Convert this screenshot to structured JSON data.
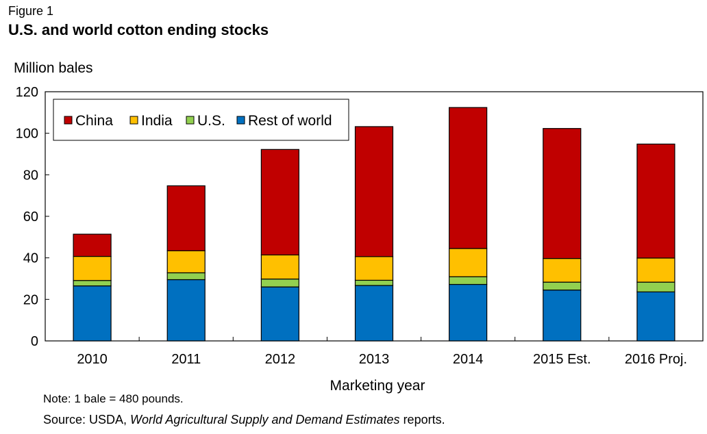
{
  "figure_label": "Figure 1",
  "title": "U.S. and world cotton ending stocks",
  "ylabel": "Million bales",
  "note": "Note: 1 bale = 480 pounds.",
  "source": {
    "prefix": "Source: USDA, ",
    "italic": "World Agricultural Supply and Demand Estimates",
    "suffix": " reports."
  },
  "chart_data": {
    "type": "bar",
    "stacked": true,
    "title": "U.S. and world cotton ending stocks",
    "xlabel": "Marketing year",
    "ylabel": "Million bales",
    "ylim": [
      0,
      120
    ],
    "yticks": [
      0,
      20,
      40,
      60,
      80,
      100,
      120
    ],
    "grid": false,
    "legend_position": "top-left",
    "categories": [
      "2010",
      "2011",
      "2012",
      "2013",
      "2014",
      "2015 Est.",
      "2016 Proj."
    ],
    "series": [
      {
        "name": "Rest of world",
        "color": "#0070c0",
        "values": [
          26.5,
          29.5,
          26.0,
          26.7,
          27.2,
          24.5,
          23.6
        ]
      },
      {
        "name": "U.S.",
        "color": "#92d050",
        "values": [
          2.6,
          3.3,
          3.8,
          2.5,
          3.7,
          3.8,
          4.7
        ]
      },
      {
        "name": "India",
        "color": "#ffc000",
        "values": [
          11.6,
          10.6,
          11.6,
          11.4,
          13.6,
          11.4,
          11.6
        ]
      },
      {
        "name": "China",
        "color": "#c00000",
        "values": [
          10.7,
          31.3,
          50.8,
          62.6,
          67.9,
          62.6,
          54.9
        ]
      }
    ],
    "legend_order": [
      "China",
      "India",
      "U.S.",
      "Rest of world"
    ]
  }
}
